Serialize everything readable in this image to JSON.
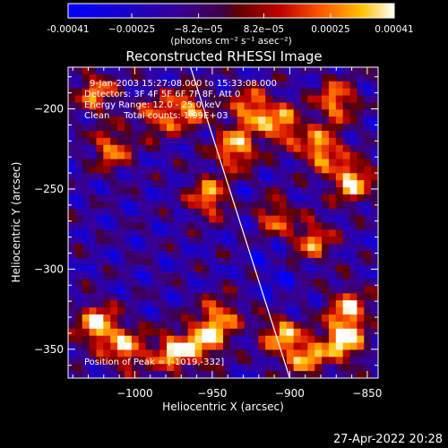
{
  "chart_data": {
    "type": "heatmap",
    "title": "Reconstructed RHESSI Image",
    "xlabel": "Heliocentric X (arcsec)",
    "ylabel": "Heliocentric Y (arcsec)",
    "xlim": [
      -1043,
      -843
    ],
    "ylim": [
      -368,
      -174
    ],
    "x_ticks": [
      -1000,
      -950,
      -900,
      -850
    ],
    "x_tick_labels": [
      "−1000",
      "−950",
      "−900",
      "−850"
    ],
    "y_ticks": [
      -200,
      -250,
      -300,
      -350
    ],
    "y_tick_labels": [
      "−200",
      "−250",
      "−300",
      "−350"
    ],
    "colorbar": {
      "ticks": [
        -0.00041,
        -0.00025,
        -8.2e-05,
        8.2e-05,
        0.00025,
        0.00041
      ],
      "tick_labels": [
        "-0.00041",
        "−0.00025",
        "−8.2e−05",
        "8.2e−05",
        "0.00025",
        "0.00041"
      ],
      "range": [
        -0.00041,
        0.00041
      ],
      "unit_label": "(photons cm⁻² s⁻¹ asec⁻²)"
    },
    "annotations": {
      "time_range": "9-Jan-2003 15:27:08.000 to 15:33:08.000",
      "detectors": "Detectors: 3F 4F 5F 6F 7F 8F, Att 0",
      "energy": "Energy Range: 12.0 - 25.0 keV",
      "clean": "Clean     Total counts: 1.99E+03",
      "peak": "Position of Peak = [-1019,-332]"
    },
    "limb_line": {
      "x": [
        -964,
        -900
      ],
      "y": [
        -174,
        -368
      ]
    },
    "hot_regions": [
      {
        "x": -1024,
        "y": -335,
        "value": 0.00041
      },
      {
        "x": -1005,
        "y": -350,
        "value": 0.0003
      },
      {
        "x": -975,
        "y": -352,
        "value": 0.00035
      },
      {
        "x": -955,
        "y": -345,
        "value": 0.0003
      },
      {
        "x": -945,
        "y": -330,
        "value": 0.00025
      },
      {
        "x": -905,
        "y": -340,
        "value": 0.00035
      },
      {
        "x": -890,
        "y": -355,
        "value": 0.00038
      },
      {
        "x": -865,
        "y": -345,
        "value": 0.0004
      },
      {
        "x": -862,
        "y": -325,
        "value": 0.0003
      },
      {
        "x": -935,
        "y": -225,
        "value": 0.00035
      },
      {
        "x": -925,
        "y": -200,
        "value": 0.0003
      },
      {
        "x": -905,
        "y": -210,
        "value": 0.0003
      },
      {
        "x": -880,
        "y": -225,
        "value": 0.00035
      },
      {
        "x": -860,
        "y": -245,
        "value": 0.0004
      },
      {
        "x": -870,
        "y": -195,
        "value": 0.0003
      },
      {
        "x": -952,
        "y": -255,
        "value": 0.0003
      },
      {
        "x": -965,
        "y": -200,
        "value": 0.00025
      },
      {
        "x": -985,
        "y": -205,
        "value": 0.0002
      },
      {
        "x": -1025,
        "y": -190,
        "value": 0.00025
      },
      {
        "x": -1015,
        "y": -225,
        "value": 0.00025
      },
      {
        "x": -912,
        "y": -268,
        "value": 0.00025
      },
      {
        "x": -885,
        "y": -282,
        "value": 0.00025
      }
    ]
  },
  "footer": {
    "timestamp": "27-Apr-2022 20:28"
  }
}
